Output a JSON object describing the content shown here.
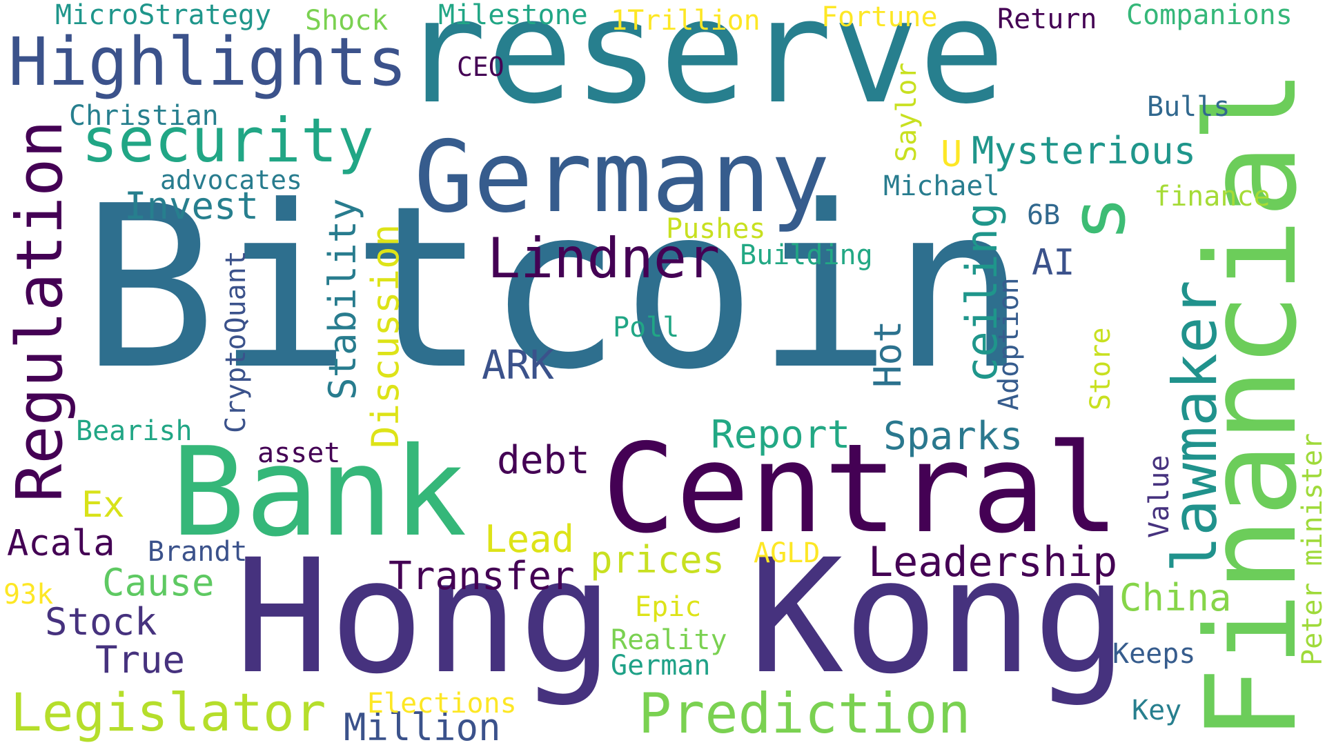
{
  "palette": {
    "dark_purple": "#440154",
    "indigo": "#46327e",
    "slate_blue": "#365c8d",
    "steel_blue": "#2e6f8e",
    "teal": "#277f8e",
    "sea_green": "#1fa187",
    "green": "#4ac16d",
    "lime": "#9fda3a",
    "yellow": "#fde725"
  },
  "words": {
    "bitcoin": "Bitcoin",
    "reserve": "reserve",
    "hong": "Hong",
    "kong": "Kong",
    "central": "Central",
    "bank": "Bank",
    "germany": "Germany",
    "financial": "Financial",
    "highlights": "Highlights",
    "regulation": "Regulation",
    "security": "security",
    "s": "s",
    "lawmaker": "lawmaker",
    "prediction": "Prediction",
    "legislator": "Legislator",
    "lindner": "Lindner",
    "mysterious": "Mysterious",
    "ceiling": "ceiling",
    "stability": "Stability",
    "discussion": "Discussion",
    "leadership": "Leadership",
    "report": "Report",
    "sparks": "Sparks",
    "transfer": "Transfer",
    "debt": "debt",
    "ark": "ARK",
    "hot": "Hot",
    "invest": "Invest",
    "million": "Million",
    "stock": "Stock",
    "true": "True",
    "cause": "Cause",
    "prices": "prices",
    "china": "China",
    "lead": "Lead",
    "acala": "Acala",
    "ex": "Ex",
    "ai": "AI",
    "u": "U",
    "microstrategy": "MicroStrategy",
    "shock": "Shock",
    "milestone": "Milestone",
    "trillion": "1Trillion",
    "fortune": "Fortune",
    "return": "Return",
    "companions": "Companions",
    "ceo": "CEO",
    "christian": "Christian",
    "advocates": "advocates",
    "bulls": "Bulls",
    "michael": "Michael",
    "finance": "finance",
    "saylor": "Saylor",
    "pushes": "Pushes",
    "sixb": "6B",
    "building": "Building",
    "poll": "Poll",
    "adoption": "Adoption",
    "store": "Store",
    "cryptoquant": "CryptoQuant",
    "bearish": "Bearish",
    "asset": "asset",
    "brandt": "Brandt",
    "agld": "AGLD",
    "value": "Value",
    "peter": "Peter",
    "minister": "minister",
    "k93": "93k",
    "epic": "Epic",
    "reality": "Reality",
    "german": "German",
    "keeps": "Keeps",
    "elections": "Elections",
    "key": "Key"
  }
}
